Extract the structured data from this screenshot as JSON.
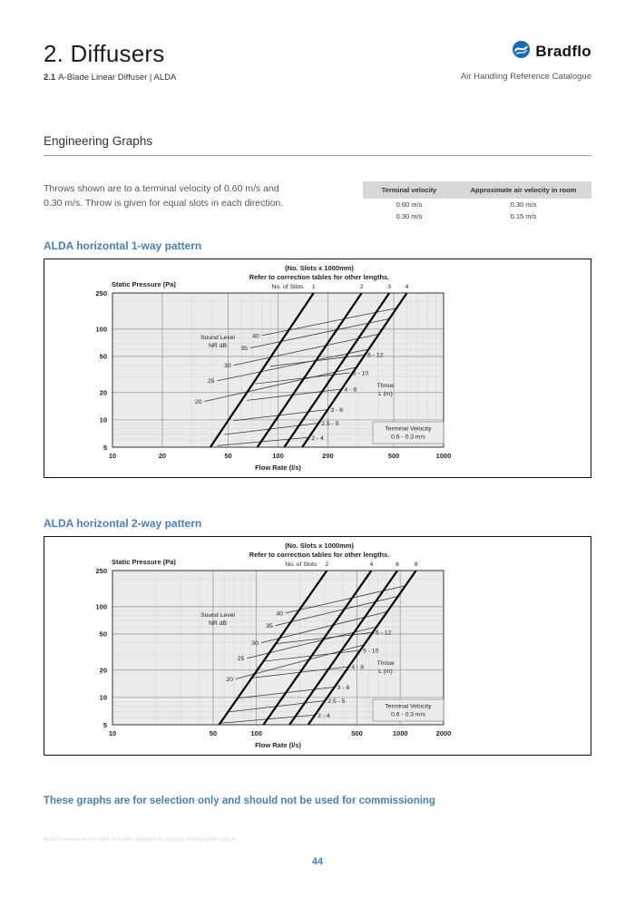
{
  "header": {
    "title": "2. Diffusers",
    "section_number": "2.1",
    "section_name": "A-Blade Linear Diffuser | ALDA",
    "brand_name": "Bradflo",
    "catalogue_name": "Air Handling Reference Catalogue"
  },
  "section_heading": "Engineering Graphs",
  "intro": {
    "line1": "Throws shown are to a terminal velocity of 0.60 m/s and",
    "line2": "0.30 m/s. Throw is given for equal slots in each direction."
  },
  "velocity_table": {
    "col1_header": "Terminal velocity",
    "col2_header": "Approximate air velocity in room",
    "rows": [
      {
        "terminal": "0.60 m/s",
        "room": "0.30 m/s"
      },
      {
        "terminal": "0.30 m/s",
        "room": "0.15 m/s"
      }
    ]
  },
  "colors": {
    "accent_blue": "#4a7fb2",
    "table_header_bg": "#d7d7d7",
    "plot_bg": "#ebebeb",
    "logo_blue": "#1e6ab0"
  },
  "chart_data": [
    {
      "type": "line",
      "scale": "log-log",
      "heading": "ALDA horizontal 1-way pattern",
      "title_line1": "(No. Slots x 1000mm)",
      "title_line2": "Refer to correction tables for other lengths.",
      "y_axis_label": "Static Pressure (Pa)",
      "x_axis_label": "Flow Rate (l/s)",
      "x_range": [
        10,
        1000
      ],
      "y_range": [
        5,
        250
      ],
      "x_ticks": [
        10,
        20,
        50,
        100,
        200,
        500,
        1000
      ],
      "y_ticks": [
        250,
        100,
        50,
        20,
        10,
        5
      ],
      "slots_header": "No. of Slots",
      "slot_lines": [
        {
          "label": "1",
          "x_at_min": 39,
          "x_at_max": 164
        },
        {
          "label": "2",
          "x_at_min": 75,
          "x_at_max": 320
        },
        {
          "label": "3",
          "x_at_min": 109,
          "x_at_max": 470
        },
        {
          "label": "4",
          "x_at_min": 140,
          "x_at_max": 600
        }
      ],
      "sound_level_label": [
        "Sound Level",
        "NR  dB"
      ],
      "nr_lines": [
        {
          "label": "40",
          "from": [
            80,
            85
          ],
          "to": [
            520,
            170
          ]
        },
        {
          "label": "35",
          "from": [
            68,
            62
          ],
          "to": [
            470,
            130
          ]
        },
        {
          "label": "30",
          "from": [
            54,
            40
          ],
          "to": [
            406,
            88
          ]
        },
        {
          "label": "25",
          "from": [
            43,
            27
          ],
          "to": [
            353,
            60
          ]
        },
        {
          "label": "20",
          "from": [
            36,
            16
          ],
          "to": [
            298,
            38
          ]
        }
      ],
      "throw_label": [
        "Throw",
        "L (m)"
      ],
      "throw_lines": [
        {
          "label": "6 - 12",
          "from": [
            90,
            39
          ],
          "to": [
            334,
            52
          ]
        },
        {
          "label": "5 - 10",
          "from": [
            73,
            25
          ],
          "to": [
            272,
            33
          ]
        },
        {
          "label": "4 - 8",
          "from": [
            65,
            16.4
          ],
          "to": [
            242,
            21.8
          ]
        },
        {
          "label": "3 - 6",
          "from": [
            54,
            9.8
          ],
          "to": [
            200,
            13
          ]
        },
        {
          "label": "2.5 - 5",
          "from": [
            47.5,
            6.9
          ],
          "to": [
            176,
            9.2
          ]
        },
        {
          "label": "2 - 4",
          "from": [
            43,
            5.2
          ],
          "to": [
            153,
            6.4
          ]
        }
      ],
      "terminal_velocity_note": [
        "Terminal Velocity",
        "0.6 - 0.3 m/s"
      ]
    },
    {
      "type": "line",
      "scale": "log-log",
      "heading": "ALDA horizontal 2-way pattern",
      "title_line1": "(No. Slots x 1000mm)",
      "title_line2": "Refer to correction tables for other lengths.",
      "y_axis_label": "Static Pressure (Pa)",
      "x_axis_label": "Flow Rate (l/s)",
      "x_range": [
        10,
        2000
      ],
      "y_range": [
        5,
        250
      ],
      "x_ticks": [
        10,
        50,
        100,
        500,
        1000,
        2000
      ],
      "y_ticks": [
        250,
        100,
        50,
        20,
        10,
        5
      ],
      "slots_header": "No. of Slots",
      "slot_lines": [
        {
          "label": "2",
          "x_at_min": 55,
          "x_at_max": 309
        },
        {
          "label": "4",
          "x_at_min": 112,
          "x_at_max": 630
        },
        {
          "label": "6",
          "x_at_min": 170,
          "x_at_max": 955
        },
        {
          "label": "8",
          "x_at_min": 229,
          "x_at_max": 1287
        }
      ],
      "sound_level_label": [
        "Sound Level",
        "NR  dB"
      ],
      "nr_lines": [
        {
          "label": "40",
          "from": [
            160,
            85
          ],
          "to": [
            1086,
            170
          ]
        },
        {
          "label": "35",
          "from": [
            136,
            62
          ],
          "to": [
            965,
            130
          ]
        },
        {
          "label": "30",
          "from": [
            108,
            40
          ],
          "to": [
            812,
            88
          ]
        },
        {
          "label": "25",
          "from": [
            86,
            27
          ],
          "to": [
            686,
            60
          ]
        },
        {
          "label": "20",
          "from": [
            72,
            16
          ],
          "to": [
            561,
            38
          ]
        }
      ],
      "throw_label": [
        "Throw",
        "L (m)"
      ],
      "throw_lines": [
        {
          "label": "6 - 12",
          "from": [
            136,
            39
          ],
          "to": [
            644,
            52
          ]
        },
        {
          "label": "5 - 10",
          "from": [
            112,
            25
          ],
          "to": [
            527,
            33
          ]
        },
        {
          "label": "4 - 8",
          "from": [
            93,
            16.4
          ],
          "to": [
            438,
            21.8
          ]
        },
        {
          "label": "3 - 6",
          "from": [
            74,
            9.8
          ],
          "to": [
            349,
            13
          ]
        },
        {
          "label": "2.5 - 5",
          "from": [
            63,
            6.9
          ],
          "to": [
            300,
            9.2
          ]
        },
        {
          "label": "2 - 4",
          "from": [
            56,
            5.2
          ],
          "to": [
            255,
            6.4
          ]
        }
      ],
      "terminal_velocity_note": [
        "Terminal Velocity",
        "0.6 - 0.3 m/s"
      ]
    }
  ],
  "footer": {
    "selection_note": "These graphs are for selection only and should not be used for commissioning",
    "disclaimer": "Bradflo reserves the right to make changes to product without prior notice",
    "page_number": "44"
  }
}
